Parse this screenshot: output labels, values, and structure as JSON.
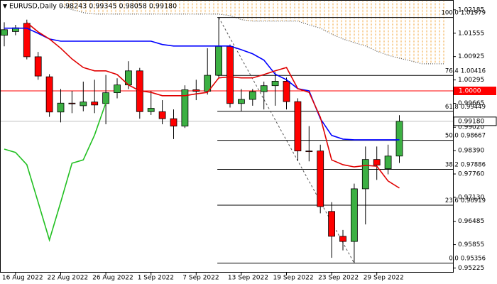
{
  "chart_data": {
    "type": "candlestick",
    "title": "EURUSD,Daily  0.98243 0.99345 0.98058 0.99180",
    "categories": [
      null,
      "16 Aug 2022",
      null,
      null,
      null,
      "22 Aug 2022",
      null,
      null,
      null,
      "26 Aug 2022",
      null,
      null,
      null,
      "1 Sep 2022",
      null,
      null,
      null,
      "7 Sep 2022",
      null,
      null,
      null,
      "13 Sep 2022",
      null,
      null,
      null,
      "19 Sep 2022",
      null,
      null,
      null,
      "23 Sep 2022",
      null,
      null,
      null,
      "29 Sep 2022",
      null,
      null,
      null,
      null,
      null,
      null
    ],
    "open": [
      1.015,
      1.016,
      1.0182,
      1.0092,
      1.0038,
      0.9943,
      0.9967,
      0.996,
      0.997,
      0.9966,
      0.9995,
      1.0016,
      1.0054,
      0.9944,
      0.9944,
      0.9925,
      0.9905,
      1.0003,
      0.9999,
      1.0042,
      1.012,
      0.9966,
      0.9977,
      0.9998,
      1.0014,
      1.0026,
      0.9971,
      0.9838,
      0.9838,
      0.9675,
      0.9608,
      0.9594,
      0.9736,
      0.9815,
      0.979,
      0.98243,
      null,
      null,
      null,
      null
    ],
    "high": [
      1.0185,
      1.0178,
      1.0192,
      1.0105,
      1.0045,
      1.0005,
      1.0,
      1.0025,
      1.003,
      1.0043,
      1.0034,
      1.008,
      1.0062,
      1.0,
      0.9975,
      0.995,
      1.0015,
      1.003,
      1.0115,
      1.01979,
      1.0125,
      1.0005,
      1.0005,
      1.0025,
      1.005,
      1.0036,
      0.998,
      0.9905,
      0.9855,
      0.97,
      0.9625,
      0.975,
      0.985,
      0.985,
      0.9855,
      0.99345,
      null,
      null,
      null,
      null
    ],
    "low": [
      1.012,
      1.015,
      1.0085,
      1.003,
      0.993,
      0.9915,
      0.994,
      0.9945,
      0.994,
      0.991,
      0.998,
      1.0005,
      0.9925,
      0.9935,
      0.991,
      0.987,
      0.99,
      0.9975,
      0.999,
      1.0035,
      0.9955,
      0.9945,
      0.996,
      0.995,
      0.996,
      0.995,
      0.9812,
      0.981,
      0.967,
      0.955,
      0.957,
      0.95356,
      0.964,
      0.976,
      0.9775,
      0.98058,
      null,
      null,
      null,
      null
    ],
    "close": [
      1.0165,
      1.017,
      1.0092,
      1.004,
      0.9943,
      0.9967,
      0.9965,
      0.997,
      0.9962,
      0.9995,
      1.0016,
      1.0054,
      0.9944,
      0.9953,
      0.9925,
      0.9905,
      1.0003,
      0.9999,
      1.0042,
      1.012,
      0.9966,
      0.9977,
      0.9998,
      1.0014,
      1.0026,
      0.9971,
      0.9838,
      0.9837,
      0.9688,
      0.9608,
      0.9594,
      0.9736,
      0.9815,
      0.98,
      0.98243,
      0.9918,
      null,
      null,
      null,
      null
    ],
    "up_color": "#3cb043",
    "down_color": "#ff0000",
    "last_price_label": "0.99180",
    "lines": [
      {
        "color": "#0000ff",
        "style": "solid",
        "values": [
          1.0169,
          1.0169,
          1.0169,
          1.0155,
          1.014,
          1.0134,
          1.0134,
          1.0134,
          1.0134,
          1.0134,
          1.0134,
          1.0134,
          1.0134,
          1.0134,
          1.0125,
          1.0121,
          1.0121,
          1.0121,
          1.0121,
          1.0121,
          1.0121,
          1.0111,
          1.01,
          1.0083,
          1.0045,
          1.003,
          1.0006,
          1.0,
          0.9925,
          0.988,
          0.987,
          0.9868,
          0.9868,
          0.9868,
          0.9868,
          0.9868,
          null,
          null,
          null,
          null
        ]
      },
      {
        "color": "#e00000",
        "style": "solid",
        "values": [
          null,
          null,
          1.0184,
          1.0159,
          1.014,
          1.0115,
          1.0086,
          1.0063,
          1.0054,
          1.0054,
          1.0044,
          1.0016,
          1.0,
          0.9996,
          0.9987,
          0.9987,
          0.9987,
          0.9992,
          0.9996,
          1.0035,
          1.0038,
          1.0035,
          1.0035,
          1.0044,
          1.0054,
          1.0063,
          1.0006,
          0.9996,
          0.9929,
          0.9814,
          0.9801,
          0.9795,
          0.9799,
          0.9797,
          0.9757,
          0.9738,
          null,
          null,
          null,
          null
        ]
      },
      {
        "color": "#22c022",
        "style": "solid",
        "values": [
          0.9843,
          0.9834,
          0.9801,
          0.97,
          0.9598,
          0.97,
          0.9805,
          0.9814,
          0.9881,
          0.9968,
          null,
          null,
          null,
          null,
          null,
          null,
          null,
          null,
          null,
          null,
          null,
          null,
          null,
          null,
          null,
          null,
          null,
          null,
          null,
          null,
          null,
          null,
          null,
          null,
          null,
          null,
          null,
          null,
          null,
          null
        ]
      },
      {
        "color": "#333333",
        "style": "dotted",
        "fill": "#f0a030",
        "values": [
          null,
          null,
          null,
          null,
          null,
          1.023,
          1.0219,
          1.0211,
          1.0207,
          1.0207,
          1.0207,
          1.0207,
          1.0207,
          1.0207,
          1.0207,
          1.0207,
          1.0207,
          1.0207,
          1.0207,
          1.0207,
          1.0203,
          1.0192,
          1.0188,
          1.0188,
          1.0188,
          1.0188,
          1.0188,
          1.0178,
          1.0169,
          1.0153,
          1.014,
          1.013,
          1.0121,
          1.0107,
          1.0096,
          1.0088,
          1.0081,
          1.0073,
          1.0073,
          1.0073
        ]
      }
    ],
    "levels": [
      {
        "value": 1,
        "label": "1.0000",
        "color": "#ff0000"
      }
    ],
    "fib": [
      {
        "level": "100.0",
        "value": 1.01979
      },
      {
        "level": "76.4",
        "value": 1.00416
      },
      {
        "level": "61.8",
        "value": 0.99449
      },
      {
        "level": "50.0",
        "value": 0.98667
      },
      {
        "level": "38.2",
        "value": 0.97886
      },
      {
        "level": "23.6",
        "value": 0.96919
      },
      {
        "level": "0.0",
        "value": 0.95356
      }
    ],
    "ylim": [
      0.951,
      1.0245
    ],
    "yticks": [
      1.02185,
      1.01555,
      {
        "value": 1.00925,
        "label": "1.00925"
      },
      1.00295,
      0.99665,
      {
        "value": 0.9902,
        "label": "0.99020"
      },
      {
        "value": 0.9839,
        "label": "0.98390"
      },
      {
        "value": 0.9776,
        "label": "0.97760"
      },
      {
        "value": 0.9713,
        "label": "0.97130"
      },
      0.96485,
      0.95855,
      0.95225
    ]
  }
}
